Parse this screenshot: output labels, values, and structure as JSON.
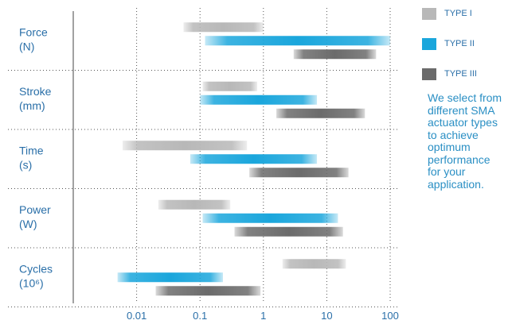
{
  "chart_data": {
    "type": "range-bar",
    "xscale": "log",
    "xlim": [
      0.001,
      100
    ],
    "xticks": [
      {
        "value": 0.01,
        "label": "0.01"
      },
      {
        "value": 0.1,
        "label": "0.1"
      },
      {
        "value": 1,
        "label": "1"
      },
      {
        "value": 10,
        "label": "10"
      },
      {
        "value": 100,
        "label": "100"
      }
    ],
    "categories": [
      {
        "line1": "Force",
        "line2": "(N)"
      },
      {
        "line1": "Stroke",
        "line2": "(mm)"
      },
      {
        "line1": "Time",
        "line2": " (s)"
      },
      {
        "line1": "Power",
        "line2": "(W)"
      },
      {
        "line1": "Cycles",
        "line2": "(10⁶)"
      }
    ],
    "series": [
      {
        "name": "TYPE I",
        "color": "#b8b8b8",
        "ranges": [
          [
            0.055,
            1.0
          ],
          [
            0.11,
            0.8
          ],
          [
            0.006,
            0.55
          ],
          [
            0.022,
            0.3
          ],
          [
            2.0,
            20
          ]
        ]
      },
      {
        "name": "TYPE II",
        "color": "#1aa6dc",
        "ranges": [
          [
            0.12,
            100
          ],
          [
            0.1,
            7.0
          ],
          [
            0.07,
            7.0
          ],
          [
            0.11,
            15
          ],
          [
            0.005,
            0.23
          ]
        ]
      },
      {
        "name": "TYPE III",
        "color": "#6b6b6b",
        "ranges": [
          [
            3.0,
            60
          ],
          [
            1.6,
            40
          ],
          [
            0.6,
            22
          ],
          [
            0.35,
            18
          ],
          [
            0.02,
            0.9
          ]
        ]
      }
    ],
    "grid": true
  },
  "note": {
    "lines": [
      "We select from",
      "different SMA",
      "actuator types",
      "to achieve",
      "optimum",
      "performance",
      "for your",
      "application."
    ]
  }
}
